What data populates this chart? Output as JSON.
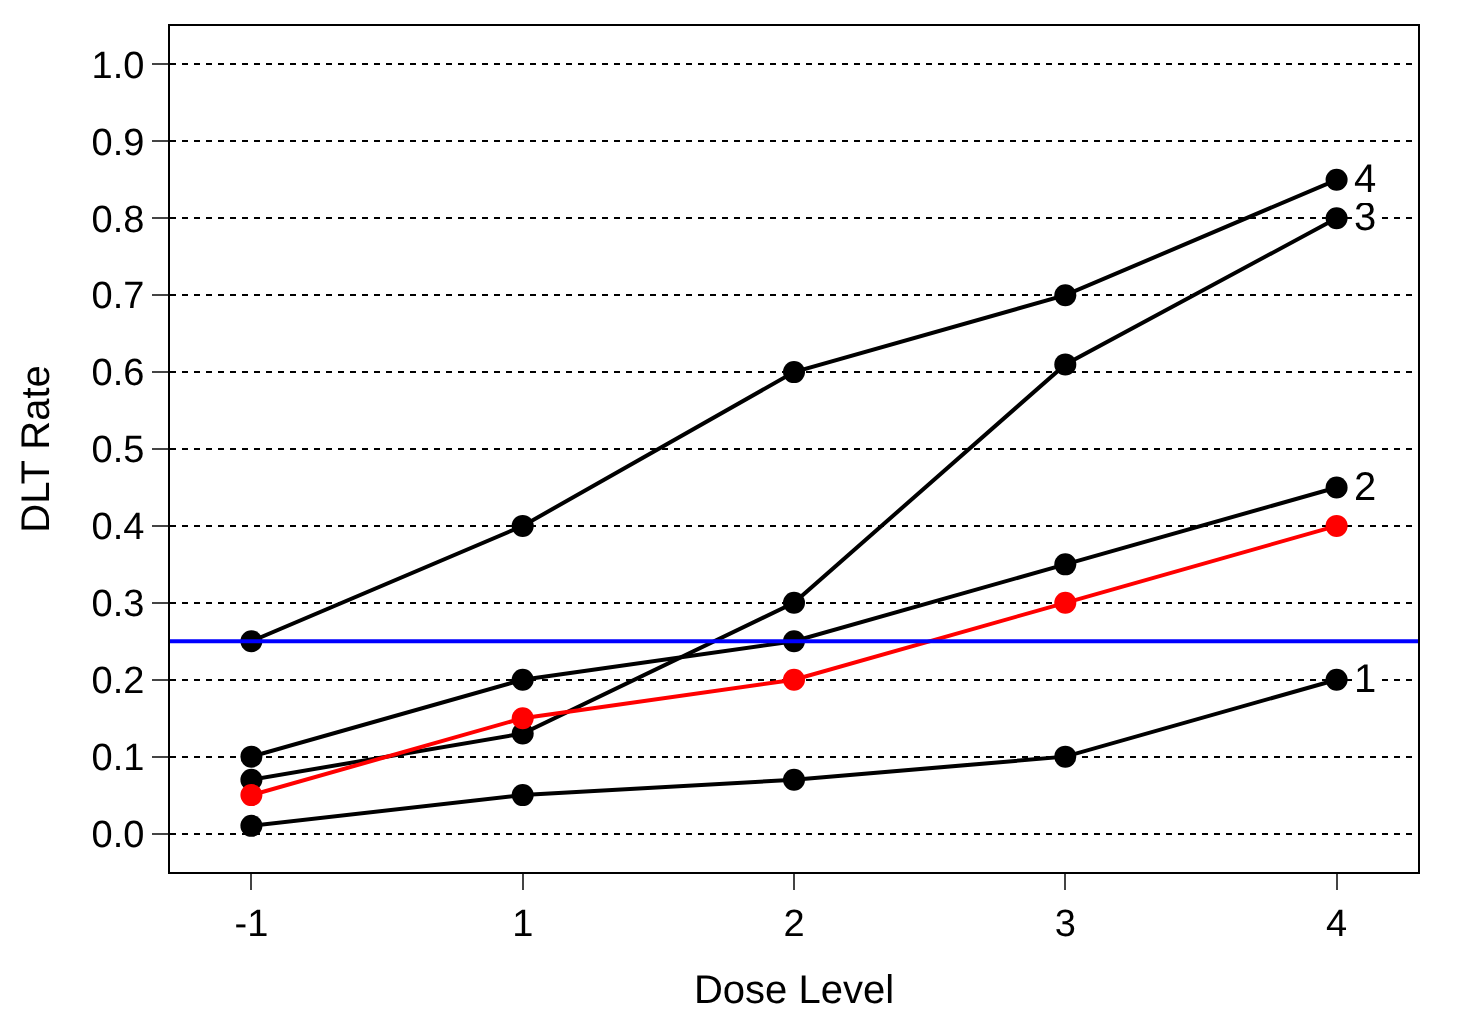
{
  "chart_data": {
    "type": "line",
    "xlabel": "Dose Level",
    "ylabel": "DLT Rate",
    "categories": [
      "-1",
      "1",
      "2",
      "3",
      "4"
    ],
    "series": [
      {
        "name": "1",
        "color": "#000000",
        "values": [
          0.01,
          0.05,
          0.07,
          0.1,
          0.2
        ]
      },
      {
        "name": "2",
        "color": "#000000",
        "values": [
          0.1,
          0.2,
          0.25,
          0.35,
          0.45
        ]
      },
      {
        "name": "3",
        "color": "#000000",
        "values": [
          0.07,
          0.13,
          0.3,
          0.61,
          0.8
        ]
      },
      {
        "name": "4",
        "color": "#000000",
        "values": [
          0.25,
          0.4,
          0.6,
          0.7,
          0.85
        ]
      },
      {
        "color": "#ff0000",
        "values": [
          0.05,
          0.15,
          0.2,
          0.3,
          0.4
        ]
      }
    ],
    "ylim": [
      -0.05,
      1.05
    ],
    "yticks": [
      {
        "value": 0,
        "label": "0.0"
      },
      0.1,
      0.2,
      0.3,
      0.4,
      0.5,
      0.6,
      0.7,
      0.8,
      0.9,
      {
        "value": 1,
        "label": "1.0"
      }
    ],
    "ref_lines": [
      {
        "axis": "y",
        "value": 0.25,
        "color": "#0000ff"
      }
    ],
    "grid": "y",
    "marker": "circle",
    "line_style": "solid",
    "legend": false
  }
}
